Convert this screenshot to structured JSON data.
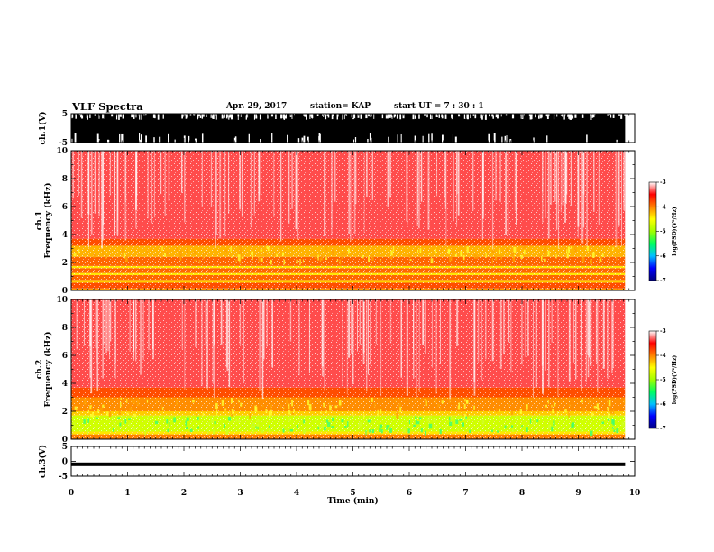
{
  "header": {
    "title": "VLF Spectra",
    "date": "Apr. 29, 2017",
    "station": "station= KAP",
    "start": "start  UT  =   7 : 30 : 1"
  },
  "chart_data": [
    {
      "type": "line",
      "panel": "ch1-waveform",
      "ylabel": "ch.1(V)",
      "ylim": [
        -5,
        5
      ],
      "yticks": [
        "5",
        "-5"
      ],
      "xlim": [
        0,
        10
      ],
      "data_end_min": 9.83,
      "description_values": {
        "baseline_v": 0.5,
        "min_v": -5,
        "max_v": 5
      }
    },
    {
      "type": "heatmap",
      "panel": "ch1-spectrogram",
      "ylabel": "ch.1\nFrequency  (kHz)",
      "ylim": [
        0,
        10
      ],
      "yticks": [
        "0",
        "2",
        "4",
        "6",
        "8",
        "10"
      ],
      "xlim": [
        0,
        10
      ],
      "data_end_min": 9.83,
      "bands_khz": [
        {
          "from": 0.0,
          "to": 0.15,
          "level": -4.1
        },
        {
          "from": 0.15,
          "to": 0.55,
          "level": -3.8
        },
        {
          "from": 0.55,
          "to": 0.75,
          "level": -4.3
        },
        {
          "from": 0.75,
          "to": 1.1,
          "level": -3.9
        },
        {
          "from": 1.1,
          "to": 1.25,
          "level": -4.4
        },
        {
          "from": 1.25,
          "to": 1.6,
          "level": -3.9
        },
        {
          "from": 1.6,
          "to": 1.75,
          "level": -4.4
        },
        {
          "from": 1.75,
          "to": 2.4,
          "level": -3.9
        },
        {
          "from": 2.4,
          "to": 3.2,
          "level": -4.2
        },
        {
          "from": 3.2,
          "to": 3.7,
          "level": -3.8
        },
        {
          "from": 3.7,
          "to": 10.0,
          "level": -3.35
        }
      ]
    },
    {
      "type": "heatmap",
      "panel": "ch2-spectrogram",
      "ylabel": "ch.2\nFrequency  (kHz)",
      "ylim": [
        0,
        10
      ],
      "yticks": [
        "0",
        "2",
        "4",
        "6",
        "8",
        "10"
      ],
      "xlim": [
        0,
        10
      ],
      "data_end_min": 9.83,
      "bands_khz": [
        {
          "from": 0.0,
          "to": 0.35,
          "level": -4.0
        },
        {
          "from": 0.35,
          "to": 0.55,
          "level": -4.4
        },
        {
          "from": 0.55,
          "to": 1.7,
          "level": -4.75
        },
        {
          "from": 1.7,
          "to": 2.0,
          "level": -4.3
        },
        {
          "from": 2.0,
          "to": 3.0,
          "level": -4.05
        },
        {
          "from": 3.0,
          "to": 3.7,
          "level": -3.8
        },
        {
          "from": 3.7,
          "to": 10.0,
          "level": -3.35
        }
      ]
    },
    {
      "type": "line",
      "panel": "ch3-waveform",
      "ylabel": "ch.3(V)",
      "ylim": [
        -5,
        5
      ],
      "yticks": [
        "5",
        "0",
        "-5"
      ],
      "xlim": [
        0,
        10
      ],
      "data_end_min": 9.83,
      "description_values": {
        "constant_v": -1.0
      }
    }
  ],
  "xaxis": {
    "label": "Time  (min)",
    "ticks": [
      "0",
      "1",
      "2",
      "3",
      "4",
      "5",
      "6",
      "7",
      "8",
      "9",
      "10"
    ]
  },
  "colorbar": {
    "label": "log(PSD)(V²/Hz)",
    "range": [
      -7,
      -3
    ],
    "ticks": [
      "-3",
      "-4",
      "-5",
      "-6",
      "-7"
    ],
    "colors": [
      "#000080",
      "#0000ff",
      "#00c0ff",
      "#00ff60",
      "#a0ff00",
      "#ffff00",
      "#ff8000",
      "#ff0000",
      "#ffffff"
    ]
  }
}
